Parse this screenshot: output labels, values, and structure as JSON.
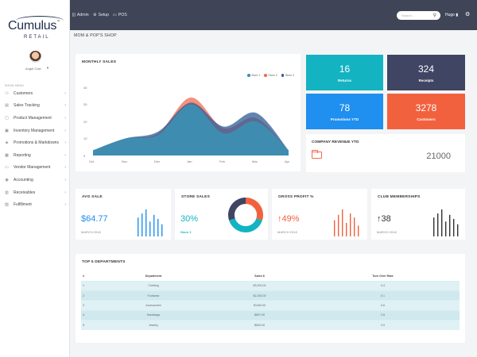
{
  "brand": {
    "name": "Cumulus",
    "tm": "™",
    "sub": "RETAIL"
  },
  "user": {
    "name": "Angel Cole",
    "caret": "▼"
  },
  "sidebar": {
    "menu_header": "SHOW MENU",
    "items": [
      {
        "label": "Customers",
        "icon": "users-icon",
        "glyph": "⚇"
      },
      {
        "label": "Sales Tracking",
        "icon": "chart-icon",
        "glyph": "▤"
      },
      {
        "label": "Product Management",
        "icon": "box-icon",
        "glyph": "▢"
      },
      {
        "label": "Inventory Management",
        "icon": "clipboard-icon",
        "glyph": "▣"
      },
      {
        "label": "Promotions & Markdowns",
        "icon": "tag-icon",
        "glyph": "◈"
      },
      {
        "label": "Reporting",
        "icon": "report-icon",
        "glyph": "▦"
      },
      {
        "label": "Vendor Management",
        "icon": "truck-icon",
        "glyph": "▭"
      },
      {
        "label": "Accounting",
        "icon": "calculator-icon",
        "glyph": "◉"
      },
      {
        "label": "Receivables",
        "icon": "receipt-icon",
        "glyph": "▥"
      },
      {
        "label": "Fulfillment",
        "icon": "package-icon",
        "glyph": "▧"
      }
    ],
    "chevron": "›"
  },
  "topbar": {
    "links": [
      {
        "label": "Admin",
        "icon": "bars-icon",
        "glyph": "|||"
      },
      {
        "label": "Setup",
        "icon": "gear-icon",
        "glyph": "⚙"
      },
      {
        "label": "POS",
        "icon": "register-icon",
        "glyph": "▭"
      }
    ],
    "search_placeholder": "Search...",
    "search_glyph": "⚲",
    "user": "Hugo ▮",
    "gear_glyph": "⚙"
  },
  "page_title": "MOM & POP'S SHOP",
  "colors": {
    "teal": "#14b3c2",
    "navy": "#3f4563",
    "blue": "#1f8ff0",
    "orange": "#f2613e",
    "store1": "#3a93b7",
    "store2": "#f26c4f",
    "store3": "#2d5b96"
  },
  "monthly_sales": {
    "title": "MONTHLY SALES",
    "chart_data": {
      "type": "area",
      "categories": [
        "Oct",
        "Nov",
        "Dec",
        "Jan",
        "Feb",
        "Mar",
        "Apr"
      ],
      "ylim": [
        0,
        40
      ],
      "yticks": [
        0,
        10,
        20,
        30,
        40
      ],
      "series": [
        {
          "name": "Store 1",
          "values": [
            3,
            10,
            12,
            30,
            13,
            20,
            3
          ]
        },
        {
          "name": "Store 2",
          "values": [
            3,
            10,
            13,
            34,
            16,
            22,
            3
          ]
        },
        {
          "name": "Store 3",
          "values": [
            3,
            10,
            14,
            31,
            17,
            25,
            3
          ]
        }
      ]
    }
  },
  "tiles": [
    {
      "value": "16",
      "label": "Returns"
    },
    {
      "value": "324",
      "label": "Receipts"
    },
    {
      "value": "78",
      "label": "Promotions YTD"
    },
    {
      "value": "3278",
      "label": "Customers"
    }
  ],
  "revenue": {
    "title": "COMPANY REVENUE YTD",
    "value": "21000"
  },
  "avg_sale": {
    "title": "AVG SALE",
    "value": "$64.77",
    "sub": "MARCH 2018",
    "bars": [
      0.7,
      0.85,
      1.0,
      0.55,
      0.8,
      0.65,
      0.45
    ]
  },
  "store_sales": {
    "title": "STORE SALES",
    "value": "30%",
    "sub": "Store 1",
    "donut": [
      30,
      40,
      30
    ]
  },
  "gross_profit": {
    "title": "GROSS PROFIT %",
    "value": "↑49%",
    "sub": "MARCH 2018",
    "bars": [
      0.6,
      0.8,
      1.0,
      0.5,
      0.85,
      0.7,
      0.4
    ]
  },
  "club": {
    "title": "CLUB MEMBERSHIPS",
    "value": "↑38",
    "sub": "MARCH 2018",
    "bars": [
      0.7,
      0.85,
      1.0,
      0.55,
      0.8,
      0.65,
      0.45
    ]
  },
  "departments": {
    "title": "TOP 5 DEPARTMENTS",
    "headers": [
      "#",
      "Department",
      "Sales $",
      "Turn Over Rate"
    ],
    "rows": [
      [
        "1",
        "Clothing",
        "$3,000.00",
        "0.4"
      ],
      [
        "2",
        "Footwear",
        "$2,250.00",
        "0.1"
      ],
      [
        "3",
        "Accessories",
        "$1400.00",
        "0.6"
      ],
      [
        "4",
        "Handbags",
        "$697.00",
        "2.5"
      ],
      [
        "5",
        "Jewelry",
        "$600.00",
        "2.9"
      ]
    ]
  }
}
